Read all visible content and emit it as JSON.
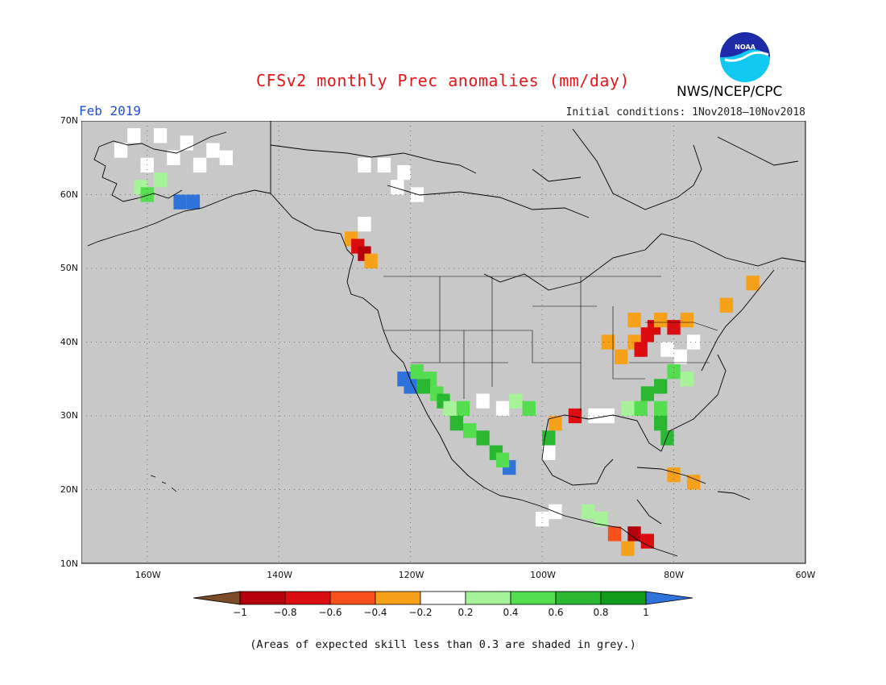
{
  "header": {
    "title": "CFSv2 monthly Prec anomalies (mm/day)",
    "month": "Feb 2019",
    "initial_conditions": "Initial conditions: 1Nov2018–10Nov2018",
    "agency": "NWS/NCEP/CPC",
    "logo_text": "NOAA"
  },
  "map": {
    "region": "North America",
    "lon_range": [
      -170,
      -60
    ],
    "lat_range": [
      10,
      70
    ],
    "lat_labels": [
      "70N",
      "60N",
      "50N",
      "40N",
      "30N",
      "20N",
      "10N"
    ],
    "lon_labels": [
      "160W",
      "140W",
      "120W",
      "100W",
      "80W",
      "60W"
    ],
    "background_color": "#c8c8c8",
    "grid_lines": "dotted"
  },
  "colorbar": {
    "labels": [
      "−1",
      "−0.8",
      "−0.6",
      "−0.4",
      "−0.2",
      "0.2",
      "0.4",
      "0.6",
      "0.8",
      "1"
    ],
    "colors": [
      "#7b4b2a",
      "#b5000c",
      "#dc0d10",
      "#f9501b",
      "#f7a01a",
      "#ffffff",
      "#a6f39a",
      "#54dd4f",
      "#2ab833",
      "#119c1c",
      "#2f72d9"
    ]
  },
  "anomalies": [
    {
      "lon": -162,
      "lat": 68,
      "value": 0
    },
    {
      "lon": -158,
      "lat": 68,
      "value": 0
    },
    {
      "lon": -154,
      "lat": 67,
      "value": 0
    },
    {
      "lon": -150,
      "lat": 66,
      "value": 0
    },
    {
      "lon": -156,
      "lat": 65,
      "value": 0
    },
    {
      "lon": -152,
      "lat": 64,
      "value": 0
    },
    {
      "lon": -160,
      "lat": 64,
      "value": 0
    },
    {
      "lon": -148,
      "lat": 65,
      "value": 0
    },
    {
      "lon": -164,
      "lat": 66,
      "value": 0
    },
    {
      "lon": -158,
      "lat": 62,
      "value": 0.3
    },
    {
      "lon": -161,
      "lat": 61,
      "value": 0.3
    },
    {
      "lon": -160,
      "lat": 60,
      "value": 0.5
    },
    {
      "lon": -155,
      "lat": 59,
      "value": 1.0
    },
    {
      "lon": -153,
      "lat": 59,
      "value": 1.0
    },
    {
      "lon": -127,
      "lat": 64,
      "value": 0
    },
    {
      "lon": -124,
      "lat": 64,
      "value": 0
    },
    {
      "lon": -121,
      "lat": 63,
      "value": 0
    },
    {
      "lon": -122,
      "lat": 61,
      "value": 0
    },
    {
      "lon": -119,
      "lat": 60,
      "value": 0
    },
    {
      "lon": -127,
      "lat": 56,
      "value": 0
    },
    {
      "lon": -129,
      "lat": 54,
      "value": -0.3
    },
    {
      "lon": -128,
      "lat": 53,
      "value": -0.7
    },
    {
      "lon": -127,
      "lat": 52,
      "value": -0.9
    },
    {
      "lon": -126,
      "lat": 51,
      "value": -0.4
    },
    {
      "lon": -119,
      "lat": 36,
      "value": 0.5
    },
    {
      "lon": -117,
      "lat": 35,
      "value": 0.5
    },
    {
      "lon": -121,
      "lat": 35,
      "value": 1.0
    },
    {
      "lon": -120,
      "lat": 34,
      "value": 1.0
    },
    {
      "lon": -118,
      "lat": 34,
      "value": 0.7
    },
    {
      "lon": -116,
      "lat": 33,
      "value": 0.5
    },
    {
      "lon": -115,
      "lat": 32,
      "value": 0.7
    },
    {
      "lon": -114,
      "lat": 31,
      "value": 0.3
    },
    {
      "lon": -112,
      "lat": 31,
      "value": 0.5
    },
    {
      "lon": -113,
      "lat": 29,
      "value": 0.7
    },
    {
      "lon": -111,
      "lat": 28,
      "value": 0.5
    },
    {
      "lon": -109,
      "lat": 27,
      "value": 0.7
    },
    {
      "lon": -107,
      "lat": 25,
      "value": 0.7
    },
    {
      "lon": -105,
      "lat": 23,
      "value": 1.0
    },
    {
      "lon": -106,
      "lat": 24,
      "value": 0.5
    },
    {
      "lon": -109,
      "lat": 32,
      "value": 0
    },
    {
      "lon": -106,
      "lat": 31,
      "value": 0
    },
    {
      "lon": -104,
      "lat": 32,
      "value": 0.3
    },
    {
      "lon": -102,
      "lat": 31,
      "value": 0.5
    },
    {
      "lon": -98,
      "lat": 29,
      "value": -0.4
    },
    {
      "lon": -95,
      "lat": 30,
      "value": -0.6
    },
    {
      "lon": -99,
      "lat": 27,
      "value": 0.7
    },
    {
      "lon": -99,
      "lat": 25,
      "value": 0
    },
    {
      "lon": -92,
      "lat": 30,
      "value": 0
    },
    {
      "lon": -88,
      "lat": 38,
      "value": -0.4
    },
    {
      "lon": -86,
      "lat": 40,
      "value": -0.4
    },
    {
      "lon": -84,
      "lat": 41,
      "value": -0.6
    },
    {
      "lon": -83,
      "lat": 42,
      "value": -0.7
    },
    {
      "lon": -82,
      "lat": 43,
      "value": -0.4
    },
    {
      "lon": -80,
      "lat": 42,
      "value": -0.6
    },
    {
      "lon": -78,
      "lat": 43,
      "value": -0.4
    },
    {
      "lon": -86,
      "lat": 43,
      "value": -0.4
    },
    {
      "lon": -85,
      "lat": 39,
      "value": -0.6
    },
    {
      "lon": -90,
      "lat": 40,
      "value": -0.4
    },
    {
      "lon": -72,
      "lat": 45,
      "value": -0.4
    },
    {
      "lon": -68,
      "lat": 48,
      "value": -0.4
    },
    {
      "lon": -79,
      "lat": 38,
      "value": 0
    },
    {
      "lon": -81,
      "lat": 39,
      "value": 0
    },
    {
      "lon": -77,
      "lat": 40,
      "value": 0
    },
    {
      "lon": -80,
      "lat": 36,
      "value": 0.5
    },
    {
      "lon": -78,
      "lat": 35,
      "value": 0.3
    },
    {
      "lon": -82,
      "lat": 34,
      "value": 0.7
    },
    {
      "lon": -84,
      "lat": 33,
      "value": 0.7
    },
    {
      "lon": -82,
      "lat": 31,
      "value": 0.5
    },
    {
      "lon": -85,
      "lat": 31,
      "value": 0.5
    },
    {
      "lon": -82,
      "lat": 29,
      "value": 0.7
    },
    {
      "lon": -81,
      "lat": 27,
      "value": 0.7
    },
    {
      "lon": -87,
      "lat": 31,
      "value": 0.3
    },
    {
      "lon": -90,
      "lat": 30,
      "value": 0
    },
    {
      "lon": -77,
      "lat": 21,
      "value": -0.4
    },
    {
      "lon": -80,
      "lat": 22,
      "value": -0.3
    },
    {
      "lon": -86,
      "lat": 14,
      "value": -0.9
    },
    {
      "lon": -84,
      "lat": 13,
      "value": -0.7
    },
    {
      "lon": -89,
      "lat": 14,
      "value": -0.5
    },
    {
      "lon": -87,
      "lat": 12,
      "value": -0.3
    },
    {
      "lon": -91,
      "lat": 16,
      "value": 0.3
    },
    {
      "lon": -93,
      "lat": 17,
      "value": 0.3
    },
    {
      "lon": -98,
      "lat": 17,
      "value": 0
    },
    {
      "lon": -100,
      "lat": 16,
      "value": 0
    }
  ],
  "footer": {
    "note": "(Areas of expected skill less than 0.3 are shaded in grey.)"
  }
}
